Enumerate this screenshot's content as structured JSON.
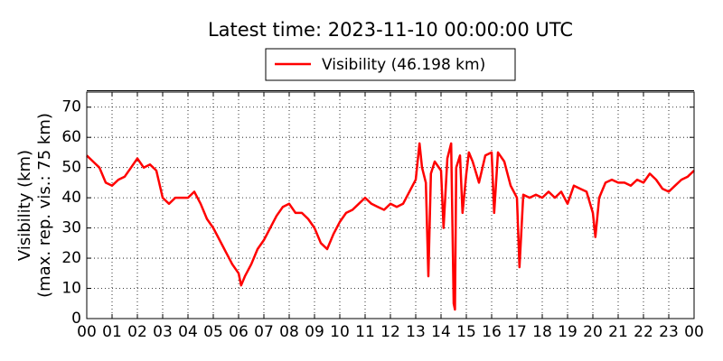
{
  "chart_data": {
    "type": "line",
    "title": "Latest time: 2023-11-10 00:00:00 UTC",
    "ylabel": [
      "Visibility (km)",
      "(max. rep. vis.: 75 km)"
    ],
    "x": [
      0,
      0.25,
      0.5,
      0.75,
      1,
      1.25,
      1.5,
      1.75,
      2,
      2.25,
      2.5,
      2.75,
      3,
      3.25,
      3.5,
      3.75,
      4,
      4.25,
      4.5,
      4.75,
      5,
      5.25,
      5.5,
      5.75,
      6,
      6.1,
      6.25,
      6.5,
      6.75,
      7,
      7.25,
      7.5,
      7.75,
      8,
      8.25,
      8.5,
      8.75,
      9,
      9.25,
      9.5,
      9.75,
      10,
      10.25,
      10.5,
      10.75,
      11,
      11.25,
      11.5,
      11.75,
      12,
      12.25,
      12.5,
      12.75,
      13,
      13.15,
      13.25,
      13.4,
      13.5,
      13.6,
      13.75,
      14,
      14.1,
      14.25,
      14.4,
      14.5,
      14.55,
      14.6,
      14.75,
      14.85,
      15,
      15.1,
      15.25,
      15.5,
      15.75,
      16,
      16.1,
      16.25,
      16.5,
      16.75,
      17,
      17.1,
      17.25,
      17.5,
      17.75,
      18,
      18.25,
      18.5,
      18.75,
      19,
      19.25,
      19.5,
      19.75,
      20,
      20.1,
      20.25,
      20.5,
      20.75,
      21,
      21.25,
      21.5,
      21.75,
      22,
      22.25,
      22.5,
      22.75,
      23,
      23.25,
      23.5,
      23.75,
      24
    ],
    "series": [
      {
        "name": "Visibility (46.198 km)",
        "color": "#ff0000",
        "values": [
          54,
          52,
          50,
          45,
          44,
          46,
          47,
          50,
          53,
          50,
          51,
          49,
          40,
          38,
          40,
          40,
          40,
          42,
          38,
          33,
          30,
          26,
          22,
          18,
          15,
          11,
          14,
          18,
          23,
          26,
          30,
          34,
          37,
          38,
          35,
          35,
          33,
          30,
          25,
          23,
          28,
          32,
          35,
          36,
          38,
          40,
          38,
          37,
          36,
          38,
          37,
          38,
          42,
          46,
          58,
          50,
          45,
          14,
          48,
          52,
          49,
          30,
          53,
          58,
          5,
          3,
          50,
          54,
          35,
          48,
          55,
          52,
          45,
          54,
          55,
          35,
          55,
          52,
          44,
          40,
          17,
          41,
          40,
          41,
          40,
          42,
          40,
          42,
          38,
          44,
          43,
          42,
          35,
          27,
          40,
          45,
          46,
          45,
          45,
          44,
          46,
          45,
          48,
          46,
          43,
          42,
          44,
          46,
          47,
          49
        ]
      }
    ],
    "xlim": [
      0,
      24
    ],
    "xticks": [
      {
        "value": 0,
        "label": "00"
      },
      {
        "value": 1,
        "label": "01"
      },
      {
        "value": 2,
        "label": "02"
      },
      {
        "value": 3,
        "label": "03"
      },
      {
        "value": 4,
        "label": "04"
      },
      {
        "value": 5,
        "label": "05"
      },
      {
        "value": 6,
        "label": "06"
      },
      {
        "value": 7,
        "label": "07"
      },
      {
        "value": 8,
        "label": "08"
      },
      {
        "value": 9,
        "label": "09"
      },
      10,
      11,
      12,
      13,
      14,
      15,
      16,
      17,
      18,
      19,
      20,
      21,
      22,
      23,
      {
        "value": 24,
        "label": "00"
      }
    ],
    "ylim": [
      0,
      75
    ],
    "yticks": [
      0,
      10,
      20,
      30,
      40,
      50,
      60,
      70
    ],
    "grid": true,
    "legend": "top"
  }
}
